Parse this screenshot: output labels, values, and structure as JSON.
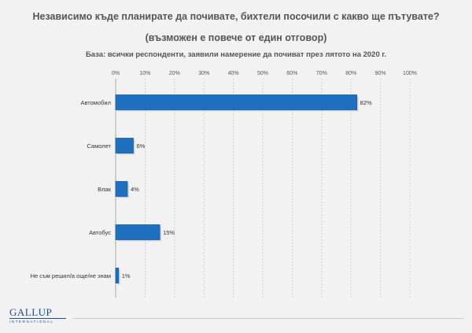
{
  "header": {
    "title_line1": "Независимо къде планирате да почивате, бихтели посочили с какво ще пътувате?",
    "title_line2": "(възможен е повече от един отговор)",
    "subtitle": "База: всички респонденти, заявили намерение да почиват през лятото на 2020 г."
  },
  "logo": {
    "main": "GALLUP",
    "sub": "INTERNATIONAL"
  },
  "chart_data": {
    "type": "bar",
    "orientation": "horizontal",
    "categories": [
      "Автомобил",
      "Самолет",
      "Влак",
      "Автобус",
      "Не съм решил/а още/не знам"
    ],
    "values": [
      82,
      6,
      4,
      15,
      1
    ],
    "value_labels": [
      "82%",
      "6%",
      "4%",
      "15%",
      "1%"
    ],
    "x_ticks": [
      "0%",
      "10%",
      "20%",
      "30%",
      "40%",
      "50%",
      "60%",
      "70%",
      "80%",
      "90%",
      "100%"
    ],
    "xlim": [
      0,
      100
    ],
    "grid": "vertical dashed",
    "colors": {
      "bar": "#1f6fc0",
      "bar_edge": "#17599c",
      "text": "#333333"
    }
  }
}
